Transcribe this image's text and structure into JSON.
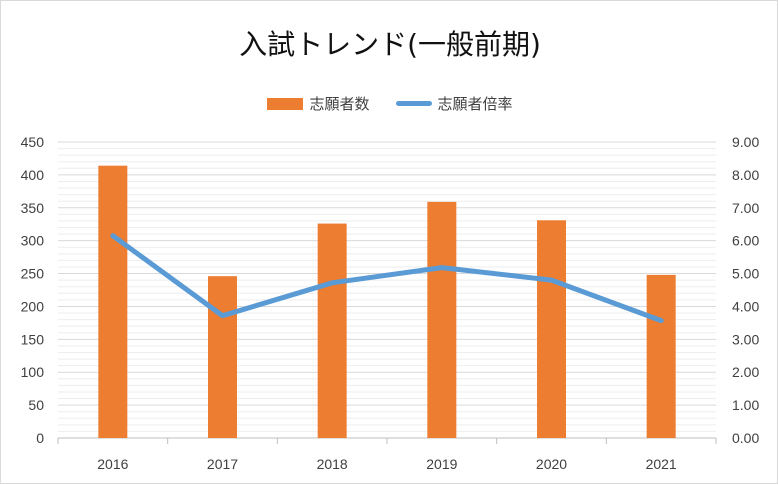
{
  "chart_data": {
    "type": "bar",
    "title": "入試トレンド(一般前期)",
    "categories": [
      "2016",
      "2017",
      "2018",
      "2019",
      "2020",
      "2021"
    ],
    "series": [
      {
        "name": "志願者数",
        "type": "bar",
        "axis": "left",
        "color": "#ed7d31",
        "values": [
          414,
          246,
          326,
          359,
          331,
          248
        ]
      },
      {
        "name": "志願者倍率",
        "type": "line",
        "axis": "right",
        "color": "#5b9bd5",
        "values": [
          6.15,
          3.72,
          4.72,
          5.18,
          4.8,
          3.57
        ]
      }
    ],
    "y_left": {
      "min": 0,
      "max": 450,
      "ticks": [
        "0",
        "50",
        "100",
        "150",
        "200",
        "250",
        "300",
        "350",
        "400",
        "450"
      ]
    },
    "y_right": {
      "min": 0,
      "max": 9,
      "ticks": [
        "0.00",
        "1.00",
        "2.00",
        "3.00",
        "4.00",
        "5.00",
        "6.00",
        "7.00",
        "8.00",
        "9.00"
      ]
    },
    "grid": true,
    "legend_position": "top"
  }
}
